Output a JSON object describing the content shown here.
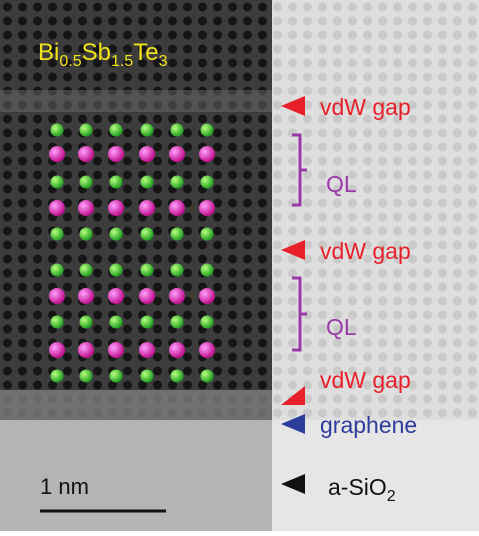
{
  "formula": [
    "Bi",
    "0.5",
    "Sb",
    "1.5",
    "Te",
    "3"
  ],
  "annotations": [
    "vdW gap",
    "QL",
    "vdW gap",
    "QL",
    "vdW gap",
    "graphene"
  ],
  "substrate": [
    "a-SiO",
    "2"
  ],
  "scale_bar": "1 nm"
}
